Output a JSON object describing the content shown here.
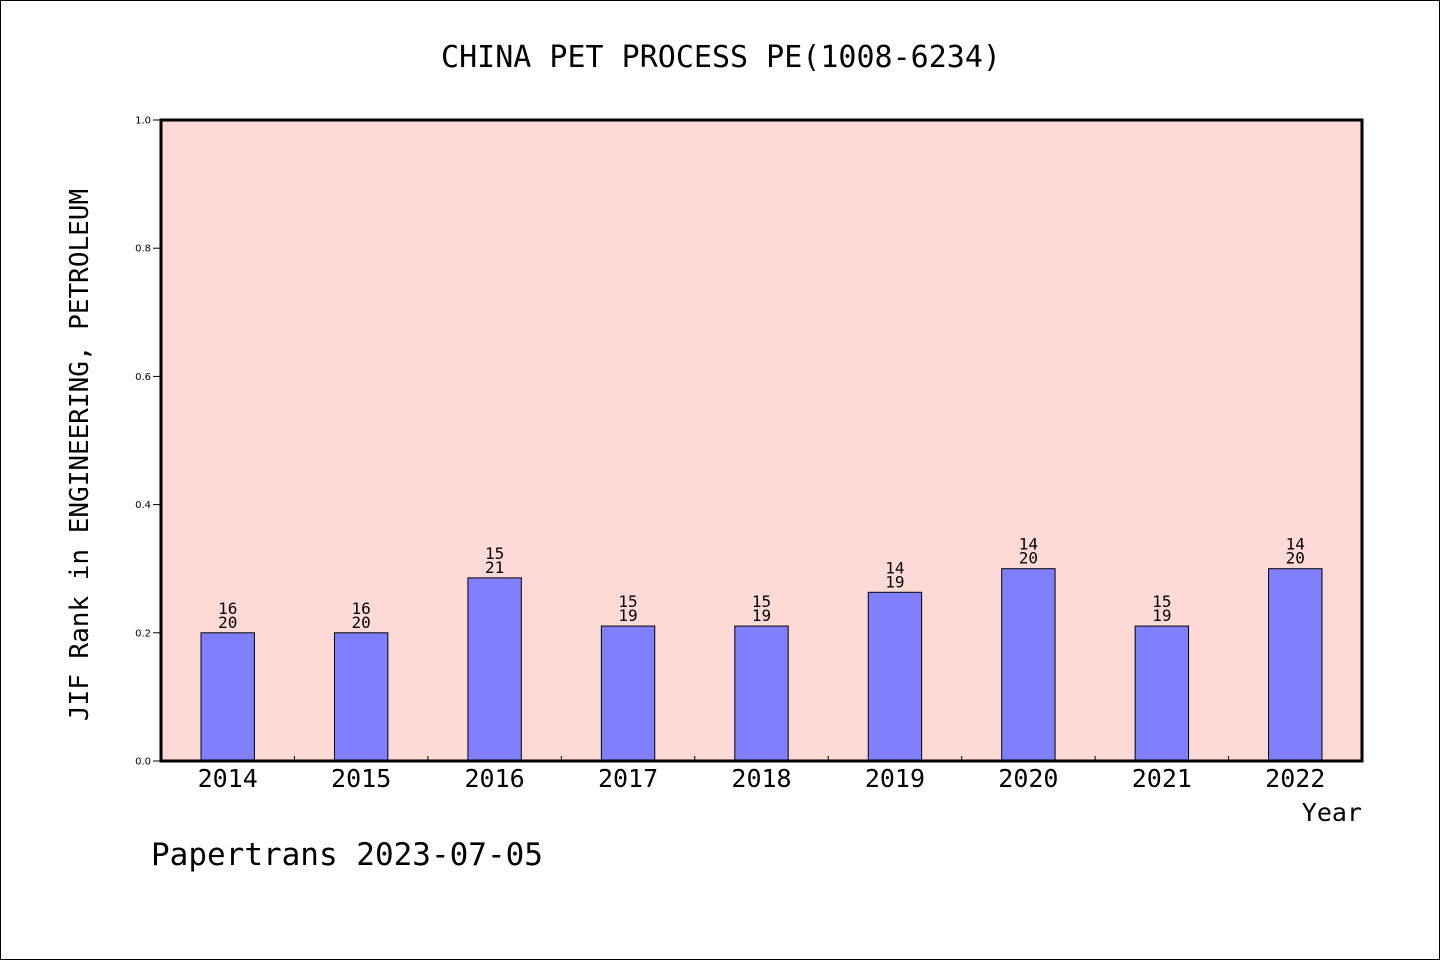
{
  "chart_data": {
    "type": "bar",
    "title": "CHINA PET PROCESS PE(1008-6234)",
    "ylabel": "JIF Rank in ENGINEERING, PETROLEUM",
    "xlabel": "Year",
    "ylim": [
      0,
      1.0
    ],
    "yticks": [
      "0.0",
      "0.2",
      "0.4",
      "0.6",
      "0.8",
      "1.0"
    ],
    "grid": false,
    "categories": [
      "2014",
      "2015",
      "2016",
      "2017",
      "2018",
      "2019",
      "2020",
      "2021",
      "2022"
    ],
    "values": [
      0.2,
      0.2,
      0.2857,
      0.2105,
      0.2105,
      0.2632,
      0.3,
      0.2105,
      0.3
    ],
    "labels_top": [
      "16",
      "16",
      "15",
      "15",
      "15",
      "14",
      "14",
      "15",
      "14"
    ],
    "labels_bottom": [
      "20",
      "20",
      "21",
      "19",
      "19",
      "19",
      "20",
      "19",
      "20"
    ],
    "colors": {
      "plot_bg": "#fddad6",
      "bar_fill": "#8080ff",
      "bar_stroke": "#000000",
      "text": "#000000"
    }
  },
  "footer": {
    "credit": "Papertrans 2023-07-05"
  }
}
